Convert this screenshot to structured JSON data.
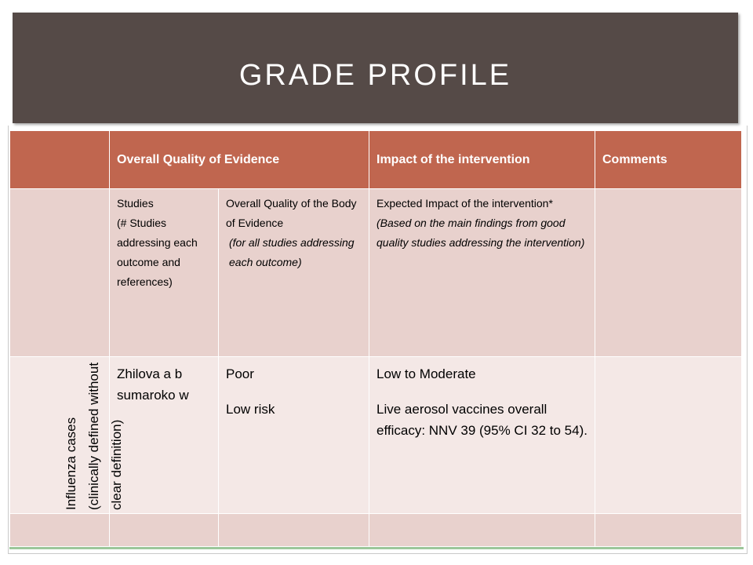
{
  "title": "GRADE PROFILE",
  "table": {
    "headers": [
      "",
      "Overall Quality of Evidence",
      "Impact of the intervention",
      "Comments"
    ],
    "subheaders": {
      "studies_line1": "Studies",
      "studies_line2": "(# Studies addressing each outcome and references)",
      "quality_line1": "Overall Quality of the Body of Evidence",
      "quality_line2": "(for all studies addressing each outcome)",
      "impact_line1": "Expected Impact of the intervention*",
      "impact_line2": "(Based on the main findings from good quality studies addressing the intervention)"
    },
    "row": {
      "outcome": "Influenza cases (clinically defined without clear definition)",
      "studies": "Zhilova a b sumaroko w",
      "quality_1": "Poor",
      "quality_2": "Low risk",
      "impact_1": "Low to Moderate",
      "impact_2": "Live aerosol vaccines overall efficacy: NNV 39 (95% CI 32 to 54).",
      "comments": ""
    }
  },
  "colors": {
    "title_bar": "#554a47",
    "header_fill": "#c0664f",
    "subheader_fill": "#e8d1cd",
    "row_fill": "#f4e8e6"
  }
}
